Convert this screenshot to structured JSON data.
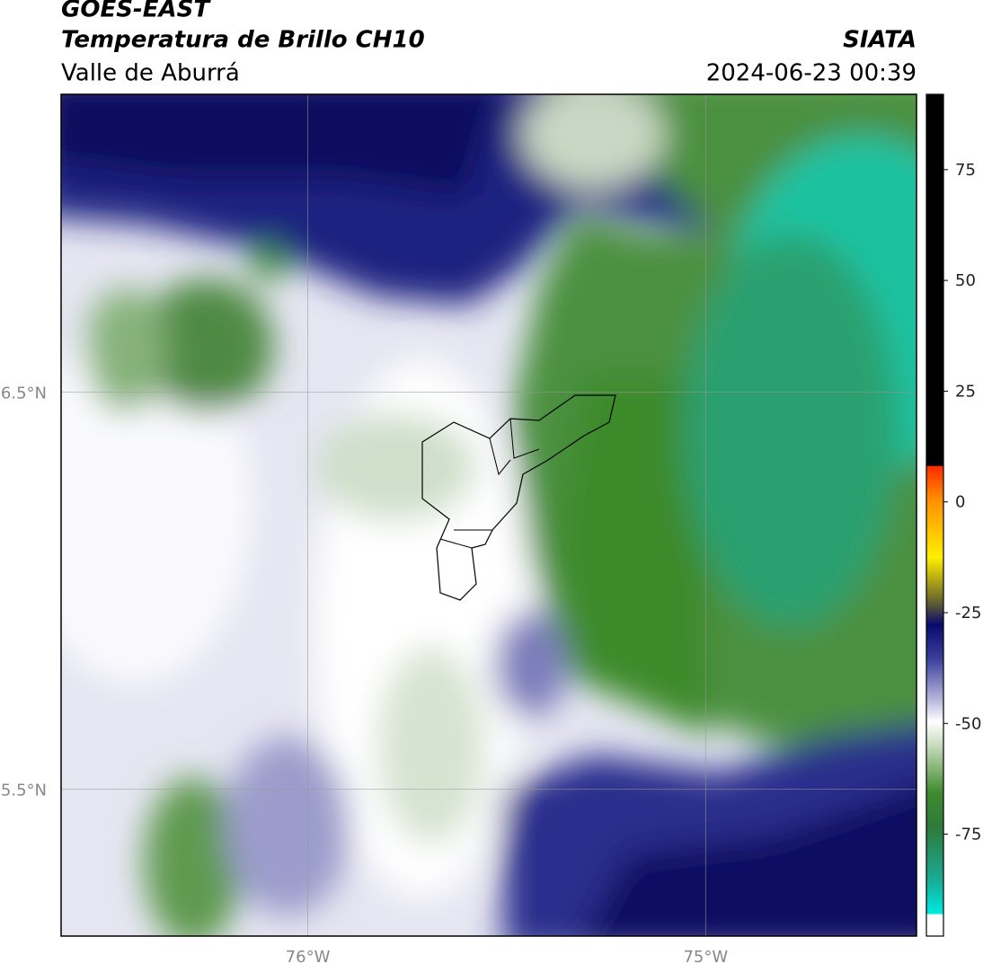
{
  "header": {
    "title": "GOES-EAST",
    "subtitle": "Temperatura de Brillo CH10",
    "region": "Valle de Aburrá",
    "source": "SIATA",
    "datetime": "2024-06-23 00:39"
  },
  "map": {
    "lonlim": [
      -76.62,
      -74.47
    ],
    "latlim": [
      5.13,
      7.25
    ],
    "lon_ticks": [
      {
        "value": -76,
        "label": "76°W"
      },
      {
        "value": -75,
        "label": "75°W"
      }
    ],
    "lat_ticks": [
      {
        "value": 6.5,
        "label": "6.5°N"
      },
      {
        "value": 5.5,
        "label": "5.5°N"
      }
    ],
    "grid": true
  },
  "colorbar": {
    "ylim": [
      -98,
      92
    ],
    "yticks": [
      75,
      50,
      25,
      0,
      -25,
      -50,
      -75
    ]
  }
}
